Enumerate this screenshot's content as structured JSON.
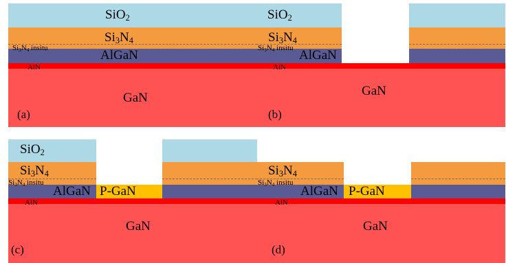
{
  "labels": {
    "sio2_base": "SiO",
    "sio2_sub": "2",
    "si3n4_a": "Si",
    "si3n4_sub1": "3",
    "si3n4_b": "N",
    "si3n4_sub2": "4",
    "insitu_a": "Si",
    "insitu_sub1": "3",
    "insitu_b": "N",
    "insitu_sub2": "4",
    "insitu_c": " insitu",
    "algan": "AlGaN",
    "aln": "AlN",
    "gan": "GaN",
    "pgan": "P-GaN"
  },
  "panels": {
    "a": "(a)",
    "b": "(b)",
    "c": "(c)",
    "d": "(d)"
  },
  "colors": {
    "sio2": "#add8e6",
    "si3n4": "#f59b3f",
    "algan": "#5a5a94",
    "aln": "#ff0000",
    "gan": "#ff5252",
    "p_gan": "#ffc000"
  }
}
